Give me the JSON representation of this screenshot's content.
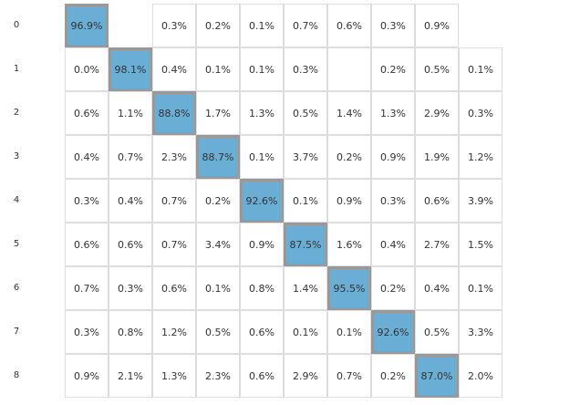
{
  "table": {
    "row_labels": [
      "0",
      "1",
      "2",
      "3",
      "4",
      "5",
      "6",
      "7",
      "8"
    ],
    "rows": [
      [
        "96.9%",
        null,
        "0.3%",
        "0.2%",
        "0.1%",
        "0.7%",
        "0.6%",
        "0.3%",
        "0.9%",
        null
      ],
      [
        "0.0%",
        "98.1%",
        "0.4%",
        "0.1%",
        "0.1%",
        "0.3%",
        null,
        "0.2%",
        "0.5%",
        "0.1%"
      ],
      [
        "0.6%",
        "1.1%",
        "88.8%",
        "1.7%",
        "1.3%",
        "0.5%",
        "1.4%",
        "1.3%",
        "2.9%",
        "0.3%"
      ],
      [
        "0.4%",
        "0.7%",
        "2.3%",
        "88.7%",
        "0.1%",
        "3.7%",
        "0.2%",
        "0.9%",
        "1.9%",
        "1.2%"
      ],
      [
        "0.3%",
        "0.4%",
        "0.7%",
        "0.2%",
        "92.6%",
        "0.1%",
        "0.9%",
        "0.3%",
        "0.6%",
        "3.9%"
      ],
      [
        "0.6%",
        "0.6%",
        "0.7%",
        "3.4%",
        "0.9%",
        "87.5%",
        "1.6%",
        "0.4%",
        "2.7%",
        "1.5%"
      ],
      [
        "0.7%",
        "0.3%",
        "0.6%",
        "0.1%",
        "0.8%",
        "1.4%",
        "95.5%",
        "0.2%",
        "0.4%",
        "0.1%"
      ],
      [
        "0.3%",
        "0.8%",
        "1.2%",
        "0.5%",
        "0.6%",
        "0.1%",
        "0.1%",
        "92.6%",
        "0.5%",
        "3.3%"
      ],
      [
        "0.9%",
        "2.1%",
        "1.3%",
        "2.3%",
        "0.6%",
        "2.9%",
        "0.7%",
        "0.2%",
        "87.0%",
        "2.0%"
      ]
    ]
  }
}
